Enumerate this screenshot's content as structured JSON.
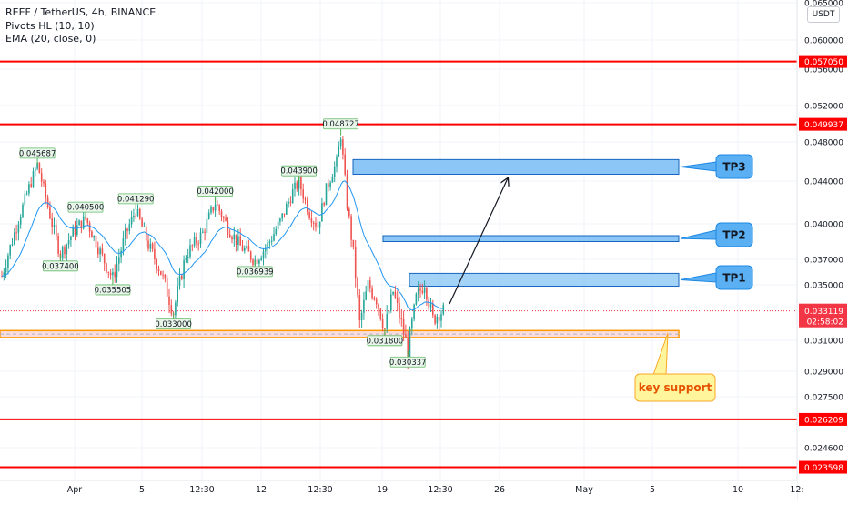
{
  "legend": {
    "title": "REEF / TetherUS, 4h, BINANCE",
    "pivots": "Pivots HL (10, 10)",
    "ema": "EMA (20, close, 0)"
  },
  "currency_button": "USDT",
  "chart_data": {
    "type": "candlestick",
    "title": "REEF / TetherUS, 4h, BINANCE",
    "y_ticks": [
      "0.065000",
      "0.060000",
      "0.056000",
      "0.052000",
      "0.048000",
      "0.044000",
      "0.040000",
      "0.037000",
      "0.035000",
      "0.031000",
      "0.029000",
      "0.027500",
      "0.024600"
    ],
    "y_tick_values": [
      0.065,
      0.06,
      0.056,
      0.052,
      0.048,
      0.044,
      0.04,
      0.037,
      0.035,
      0.031,
      0.029,
      0.0275,
      0.0246
    ],
    "x_ticks": [
      "Apr",
      "5",
      "12:30",
      "12",
      "12:30",
      "19",
      "12:30",
      "26",
      "May",
      "5",
      "10",
      "12:"
    ],
    "horizontal_lines": [
      {
        "value": 0.05705,
        "label": "0.057050",
        "color": "#ff0000"
      },
      {
        "value": 0.049937,
        "label": "0.049937",
        "color": "#ff0000"
      },
      {
        "value": 0.026209,
        "label": "0.026209",
        "color": "#ff0000"
      },
      {
        "value": 0.023598,
        "label": "0.023598",
        "color": "#ff0000"
      }
    ],
    "current_price": {
      "value": 0.033119,
      "label": "0.033119",
      "countdown": "02:58:02",
      "color": "#f23645"
    },
    "pivot_labels": [
      {
        "label": "0.045687",
        "value": 0.045687,
        "type": "high"
      },
      {
        "label": "0.037400",
        "value": 0.0374,
        "type": "low"
      },
      {
        "label": "0.040500",
        "value": 0.0405,
        "type": "high"
      },
      {
        "label": "0.035505",
        "value": 0.035505,
        "type": "low"
      },
      {
        "label": "0.041290",
        "value": 0.04129,
        "type": "high"
      },
      {
        "label": "0.033000",
        "value": 0.033,
        "type": "low"
      },
      {
        "label": "0.042000",
        "value": 0.042,
        "type": "high"
      },
      {
        "label": "0.036939",
        "value": 0.036939,
        "type": "low"
      },
      {
        "label": "0.043900",
        "value": 0.0439,
        "type": "high"
      },
      {
        "label": "0.048727",
        "value": 0.048727,
        "type": "high"
      },
      {
        "label": "0.031800",
        "value": 0.0318,
        "type": "low"
      },
      {
        "label": "0.030337",
        "value": 0.030337,
        "type": "low"
      }
    ],
    "targets": [
      {
        "label": "TP1",
        "low": 0.0349,
        "high": 0.0359
      },
      {
        "label": "TP2",
        "low": 0.0385,
        "high": 0.039
      },
      {
        "label": "TP3",
        "low": 0.0447,
        "high": 0.0462
      }
    ],
    "support_zone": {
      "label": "key support",
      "low": 0.0312,
      "high": 0.0317
    },
    "colors": {
      "up": "#26a69a",
      "down": "#ef5350",
      "ema": "#2196f3",
      "target_fill": "#7ec0f5",
      "target_stroke": "#1565c0",
      "support_fill": "#fbdcdc",
      "support_stroke": "#ff9800",
      "note_fill": "#fff59d"
    },
    "grid": true
  }
}
